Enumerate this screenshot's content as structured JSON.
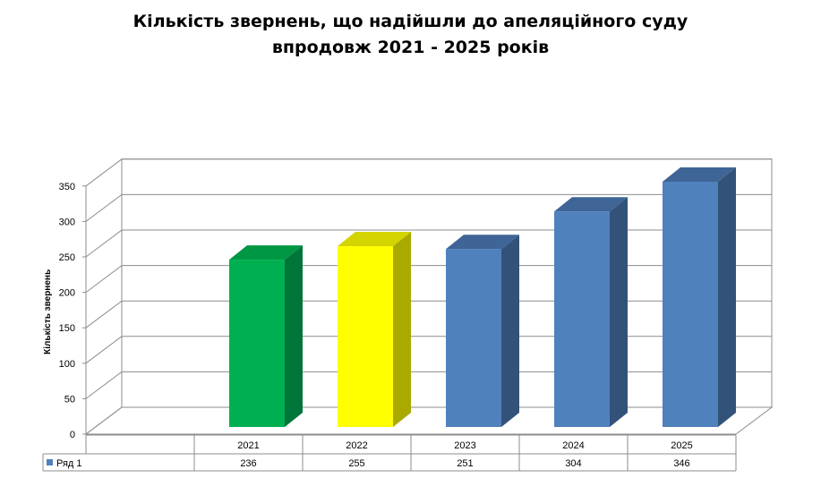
{
  "chart_data": {
    "type": "bar",
    "title_line1": "Кількість звернень, що надійшли до апеляційного суду",
    "title_line2": "впродовж 2021  - 2025 років",
    "ylabel": "Кількість звернень",
    "xlabel": "",
    "ylim": [
      0,
      350
    ],
    "yticks": [
      "0",
      "50",
      "100",
      "150",
      "200",
      "250",
      "300",
      "350"
    ],
    "grid": true,
    "categories": [
      "2021",
      "2022",
      "2023",
      "2024",
      "2025"
    ],
    "series": [
      {
        "name": "Ряд 1",
        "values": [
          236,
          255,
          251,
          304,
          346
        ]
      }
    ],
    "data_table": {
      "series_label": "Ряд 1",
      "values": [
        "236",
        "255",
        "251",
        "304",
        "346"
      ]
    },
    "bar_colors": [
      "#00B050",
      "#FFFF00",
      "#4F81BD",
      "#4F81BD",
      "#4F81BD"
    ],
    "bar_side_colors": [
      "#00753A",
      "#A9A900",
      "#33527A",
      "#33527A",
      "#33527A"
    ],
    "bar_top_colors": [
      "#009744",
      "#D4D400",
      "#3E6595",
      "#3E6595",
      "#3E6595"
    ],
    "legend_key_color": "#4F81BD"
  }
}
